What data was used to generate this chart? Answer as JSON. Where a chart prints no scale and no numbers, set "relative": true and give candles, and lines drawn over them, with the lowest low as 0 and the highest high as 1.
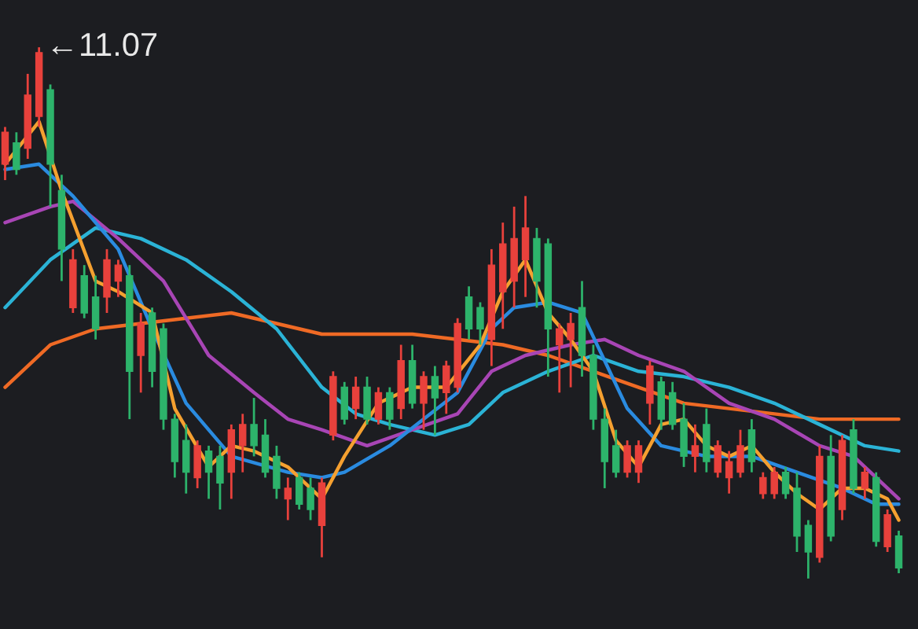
{
  "chart_data": {
    "type": "candlestick",
    "relative": true,
    "grid": false,
    "marker": "none",
    "line_style": "solid",
    "annotations": [
      "←11.07"
    ],
    "categories": [
      null,
      null,
      null,
      null,
      null,
      null,
      null,
      null,
      null,
      null,
      null,
      null,
      null,
      null,
      null,
      null,
      null,
      null,
      null,
      null,
      null,
      null,
      null,
      null,
      null,
      null,
      null,
      null,
      null,
      null,
      null,
      null,
      null,
      null,
      null,
      null,
      null,
      null,
      null,
      null,
      null,
      null,
      null,
      null,
      null,
      null,
      null,
      null,
      null,
      null,
      null,
      null,
      null,
      null,
      null,
      null,
      null,
      null,
      null,
      null,
      null,
      null,
      null,
      null,
      null,
      null,
      null,
      null,
      null,
      null,
      null,
      null,
      null,
      null,
      null,
      null,
      null,
      null,
      null,
      null
    ],
    "ohlc": [
      [
        0.78,
        0.85,
        0.75,
        0.84
      ],
      [
        0.82,
        0.84,
        0.76,
        0.77
      ],
      [
        0.81,
        0.95,
        0.79,
        0.91
      ],
      [
        0.87,
        1,
        0.85,
        0.99
      ],
      [
        0.92,
        0.93,
        0.7,
        0.78
      ],
      [
        0.73,
        0.76,
        0.56,
        0.62
      ],
      [
        0.51,
        0.62,
        0.5,
        0.6
      ],
      [
        0.57,
        0.59,
        0.49,
        0.5
      ],
      [
        0.53,
        0.57,
        0.45,
        0.47
      ],
      [
        0.53,
        0.62,
        0.5,
        0.6
      ],
      [
        0.56,
        0.6,
        0.53,
        0.59
      ],
      [
        0.57,
        0.59,
        0.3,
        0.39
      ],
      [
        0.42,
        0.5,
        0.35,
        0.48
      ],
      [
        0.5,
        0.51,
        0.36,
        0.39
      ],
      [
        0.47,
        0.48,
        0.28,
        0.3
      ],
      [
        0.3,
        0.31,
        0.19,
        0.22
      ],
      [
        0.26,
        0.29,
        0.16,
        0.2
      ],
      [
        0.19,
        0.26,
        0.17,
        0.25
      ],
      [
        0.24,
        0.25,
        0.15,
        0.2
      ],
      [
        0.23,
        0.25,
        0.13,
        0.18
      ],
      [
        0.2,
        0.29,
        0.15,
        0.28
      ],
      [
        0.25,
        0.31,
        0.2,
        0.29
      ],
      [
        0.29,
        0.34,
        0.23,
        0.25
      ],
      [
        0.27,
        0.3,
        0.19,
        0.2
      ],
      [
        0.23,
        0.25,
        0.15,
        0.17
      ],
      [
        0.15,
        0.19,
        0.11,
        0.17
      ],
      [
        0.19,
        0.2,
        0.13,
        0.14
      ],
      [
        0.17,
        0.19,
        0.11,
        0.13
      ],
      [
        0.1,
        0.19,
        0.04,
        0.18
      ],
      [
        0.27,
        0.39,
        0.26,
        0.38
      ],
      [
        0.36,
        0.37,
        0.29,
        0.3
      ],
      [
        0.32,
        0.38,
        0.3,
        0.36
      ],
      [
        0.36,
        0.38,
        0.29,
        0.3
      ],
      [
        0.3,
        0.36,
        0.29,
        0.35
      ],
      [
        0.35,
        0.36,
        0.28,
        0.3
      ],
      [
        0.32,
        0.44,
        0.3,
        0.41
      ],
      [
        0.41,
        0.44,
        0.32,
        0.33
      ],
      [
        0.33,
        0.39,
        0.28,
        0.38
      ],
      [
        0.38,
        0.4,
        0.27,
        0.34
      ],
      [
        0.35,
        0.41,
        0.31,
        0.4
      ],
      [
        0.36,
        0.49,
        0.35,
        0.48
      ],
      [
        0.53,
        0.55,
        0.45,
        0.47
      ],
      [
        0.51,
        0.52,
        0.44,
        0.47
      ],
      [
        0.45,
        0.62,
        0.4,
        0.59
      ],
      [
        0.54,
        0.67,
        0.47,
        0.63
      ],
      [
        0.56,
        0.7,
        0.51,
        0.64
      ],
      [
        0.6,
        0.72,
        0.53,
        0.66
      ],
      [
        0.64,
        0.66,
        0.51,
        0.56
      ],
      [
        0.63,
        0.64,
        0.38,
        0.47
      ],
      [
        0.44,
        0.48,
        0.35,
        0.47
      ],
      [
        0.45,
        0.5,
        0.36,
        0.48
      ],
      [
        0.51,
        0.56,
        0.38,
        0.42
      ],
      [
        0.42,
        0.44,
        0.28,
        0.3
      ],
      [
        0.3,
        0.32,
        0.17,
        0.22
      ],
      [
        0.25,
        0.28,
        0.19,
        0.2
      ],
      [
        0.2,
        0.26,
        0.19,
        0.25
      ],
      [
        0.2,
        0.26,
        0.18,
        0.25
      ],
      [
        0.33,
        0.41,
        0.29,
        0.4
      ],
      [
        0.37,
        0.38,
        0.28,
        0.3
      ],
      [
        0.35,
        0.37,
        0.28,
        0.29
      ],
      [
        0.3,
        0.33,
        0.21,
        0.23
      ],
      [
        0.23,
        0.29,
        0.2,
        0.25
      ],
      [
        0.29,
        0.32,
        0.2,
        0.22
      ],
      [
        0.2,
        0.26,
        0.19,
        0.25
      ],
      [
        0.19,
        0.24,
        0.16,
        0.22
      ],
      [
        0.2,
        0.28,
        0.19,
        0.25
      ],
      [
        0.28,
        0.3,
        0.2,
        0.22
      ],
      [
        0.16,
        0.2,
        0.15,
        0.19
      ],
      [
        0.16,
        0.21,
        0.15,
        0.2
      ],
      [
        0.2,
        0.21,
        0.15,
        0.16
      ],
      [
        0.17,
        0.2,
        0.05,
        0.08
      ],
      [
        0.1,
        0.11,
        0,
        0.05
      ],
      [
        0.04,
        0.25,
        0.03,
        0.23
      ],
      [
        0.23,
        0.27,
        0.07,
        0.08
      ],
      [
        0.13,
        0.27,
        0.11,
        0.26
      ],
      [
        0.28,
        0.3,
        0.16,
        0.17
      ],
      [
        0.17,
        0.21,
        0.15,
        0.2
      ],
      [
        0.19,
        0.2,
        0.06,
        0.07
      ],
      [
        0.06,
        0.13,
        0.05,
        0.12
      ],
      [
        0.08,
        0.09,
        0.01,
        0.02
      ]
    ],
    "colors": [
      "#e8413c",
      "#2db36b",
      "#e8413c",
      "#e8413c",
      "#2db36b",
      "#2db36b",
      "#e8413c",
      "#2db36b",
      "#2db36b",
      "#e8413c",
      "#e8413c",
      "#2db36b",
      "#e8413c",
      "#2db36b",
      "#2db36b",
      "#2db36b",
      "#2db36b",
      "#e8413c",
      "#2db36b",
      "#2db36b",
      "#e8413c",
      "#e8413c",
      "#2db36b",
      "#2db36b",
      "#2db36b",
      "#e8413c",
      "#2db36b",
      "#2db36b",
      "#e8413c",
      "#e8413c",
      "#2db36b",
      "#e8413c",
      "#2db36b",
      "#e8413c",
      "#2db36b",
      "#e8413c",
      "#2db36b",
      "#e8413c",
      "#2db36b",
      "#e8413c",
      "#e8413c",
      "#2db36b",
      "#2db36b",
      "#e8413c",
      "#e8413c",
      "#e8413c",
      "#e8413c",
      "#2db36b",
      "#2db36b",
      "#e8413c",
      "#e8413c",
      "#2db36b",
      "#2db36b",
      "#2db36b",
      "#2db36b",
      "#e8413c",
      "#e8413c",
      "#e8413c",
      "#2db36b",
      "#2db36b",
      "#2db36b",
      "#e8413c",
      "#2db36b",
      "#e8413c",
      "#e8413c",
      "#e8413c",
      "#2db36b",
      "#e8413c",
      "#e8413c",
      "#2db36b",
      "#2db36b",
      "#2db36b",
      "#e8413c",
      "#2db36b",
      "#e8413c",
      "#2db36b",
      "#e8413c",
      "#2db36b",
      "#e8413c",
      "#2db36b"
    ],
    "series": [
      {
        "type": "line",
        "color": "#ef6a25",
        "values": [
          0.36,
          null,
          null,
          null,
          0.44,
          null,
          null,
          null,
          0.47,
          null,
          null,
          null,
          0.48,
          null,
          null,
          null,
          0.49,
          null,
          null,
          null,
          0.5,
          null,
          null,
          null,
          0.48,
          null,
          null,
          null,
          0.46,
          null,
          null,
          null,
          0.46,
          null,
          null,
          null,
          0.46,
          null,
          null,
          null,
          0.45,
          null,
          null,
          null,
          0.44,
          null,
          null,
          null,
          0.42,
          null,
          null,
          null,
          0.39,
          null,
          null,
          null,
          0.36,
          null,
          null,
          null,
          0.33,
          null,
          null,
          null,
          0.32,
          null,
          null,
          null,
          0.31,
          null,
          null,
          null,
          0.3,
          null,
          null,
          null,
          0.3,
          null,
          null,
          0.3
        ]
      },
      {
        "type": "line",
        "color": "#2bb3d6",
        "values": [
          0.51,
          null,
          null,
          null,
          0.6,
          null,
          null,
          null,
          0.66,
          null,
          null,
          null,
          0.64,
          null,
          null,
          null,
          0.6,
          null,
          null,
          null,
          0.54,
          null,
          null,
          null,
          0.47,
          null,
          null,
          null,
          0.36,
          null,
          null,
          0.31,
          null,
          null,
          0.29,
          null,
          null,
          null,
          0.27,
          null,
          null,
          0.29,
          null,
          null,
          0.35,
          null,
          null,
          null,
          0.39,
          null,
          null,
          null,
          0.42,
          null,
          null,
          null,
          0.39,
          null,
          null,
          null,
          0.38,
          null,
          null,
          null,
          0.36,
          null,
          null,
          null,
          0.33,
          null,
          null,
          null,
          0.29,
          null,
          null,
          null,
          0.25,
          null,
          null,
          0.24
        ]
      },
      {
        "type": "line",
        "color": "#a845b5",
        "values": [
          0.67,
          null,
          null,
          null,
          0.7,
          null,
          0.71,
          null,
          null,
          null,
          0.64,
          null,
          null,
          null,
          0.56,
          null,
          null,
          null,
          0.42,
          null,
          null,
          null,
          0.35,
          null,
          null,
          0.3,
          null,
          null,
          0.28,
          null,
          null,
          null,
          0.25,
          null,
          null,
          null,
          0.28,
          null,
          null,
          null,
          0.31,
          null,
          null,
          0.39,
          null,
          null,
          0.42,
          null,
          null,
          null,
          0.44,
          null,
          null,
          0.45,
          null,
          null,
          0.42,
          null,
          null,
          null,
          0.39,
          null,
          null,
          null,
          0.33,
          null,
          null,
          null,
          0.3,
          null,
          null,
          null,
          0.25,
          null,
          null,
          0.23,
          null,
          null,
          null,
          0.15
        ]
      },
      {
        "type": "line",
        "color": "#2a8be0",
        "values": [
          0.77,
          null,
          null,
          0.78,
          null,
          null,
          0.72,
          null,
          null,
          null,
          0.62,
          null,
          null,
          0.47,
          null,
          null,
          0.33,
          null,
          null,
          null,
          0.23,
          null,
          null,
          null,
          null,
          0.2,
          null,
          null,
          0.19,
          null,
          0.2,
          null,
          null,
          null,
          0.25,
          null,
          null,
          0.3,
          null,
          null,
          0.35,
          null,
          null,
          0.47,
          null,
          0.51,
          null,
          null,
          0.52,
          null,
          null,
          0.5,
          null,
          0.41,
          null,
          0.32,
          null,
          null,
          0.25,
          null,
          null,
          null,
          0.23,
          null,
          null,
          null,
          0.23,
          null,
          null,
          null,
          0.2,
          null,
          null,
          null,
          0.17,
          null,
          null,
          0.14,
          null,
          0.14
        ]
      },
      {
        "type": "line",
        "color": "#f5a030",
        "values": [
          0.78,
          null,
          null,
          0.86,
          null,
          0.73,
          null,
          null,
          0.56,
          null,
          0.54,
          null,
          null,
          0.5,
          null,
          0.32,
          null,
          null,
          0.21,
          null,
          0.25,
          null,
          0.24,
          null,
          null,
          0.21,
          null,
          null,
          0.15,
          null,
          0.23,
          null,
          null,
          0.33,
          null,
          null,
          0.36,
          null,
          null,
          0.36,
          null,
          null,
          0.44,
          null,
          0.54,
          null,
          0.6,
          null,
          0.5,
          null,
          0.45,
          null,
          0.39,
          null,
          0.26,
          null,
          0.21,
          null,
          0.29,
          null,
          0.3,
          null,
          0.25,
          null,
          0.23,
          null,
          0.25,
          null,
          0.2,
          null,
          0.16,
          null,
          0.13,
          null,
          0.17,
          null,
          0.17,
          null,
          0.15,
          0.11
        ]
      }
    ]
  }
}
